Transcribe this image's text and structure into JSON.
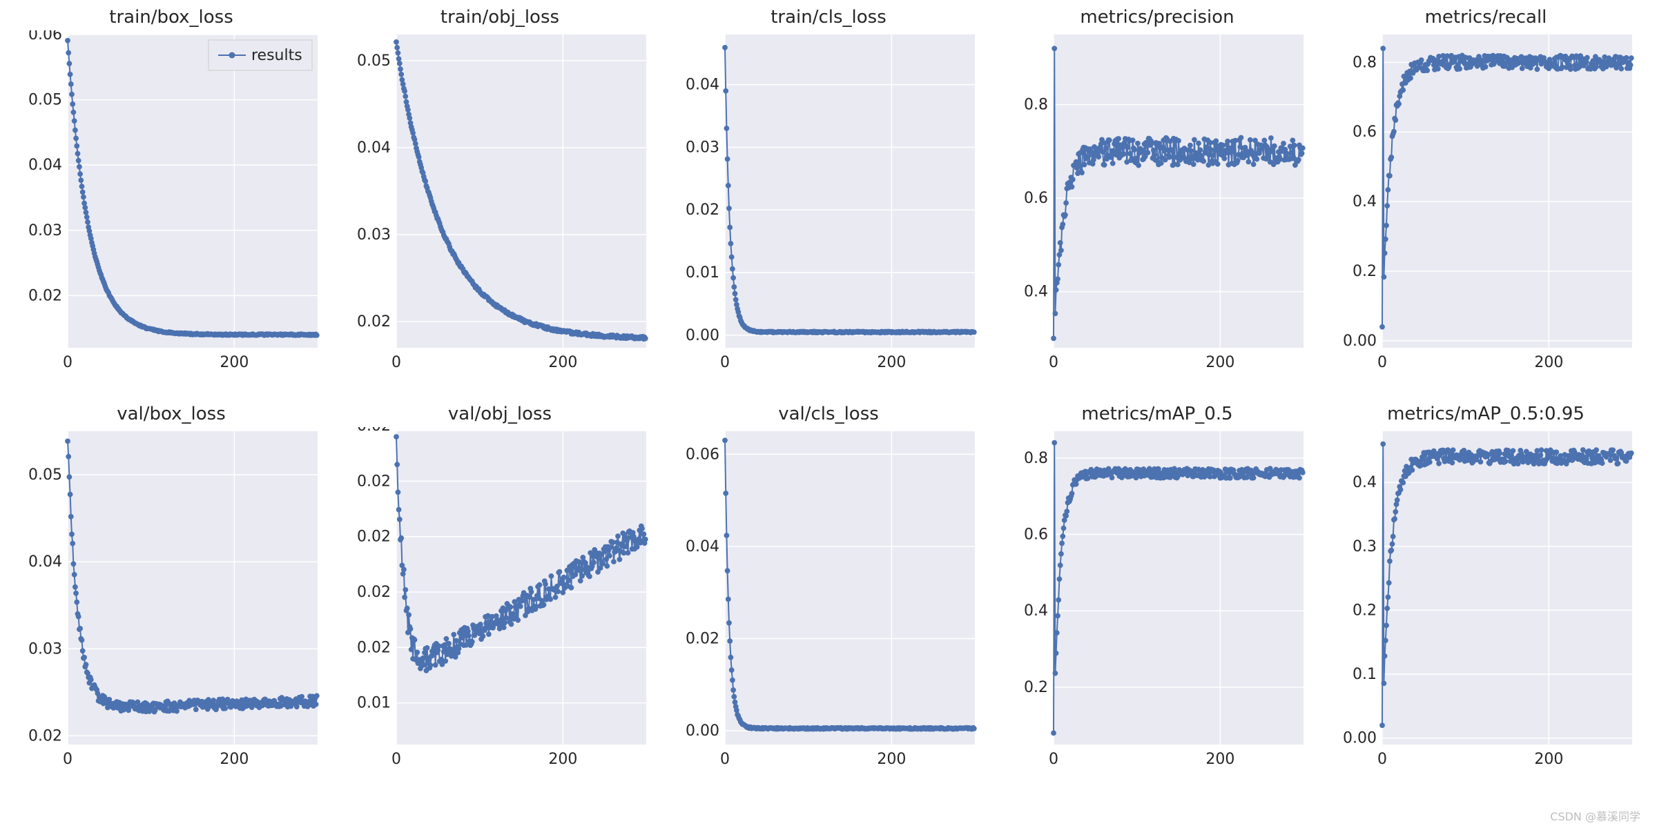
{
  "global": {
    "background_color": "#ffffff",
    "plot_bg": "#eaeaf2",
    "grid_color": "#ffffff",
    "line_color": "#4c72b0",
    "marker_color": "#4c72b0",
    "marker_fill": "#4c72b0",
    "marker_edge": "#ffffff",
    "marker_radius": 3.5,
    "line_width": 2,
    "tick_color": "#262626",
    "tick_fontsize": 22,
    "title_fontsize": 26,
    "n_points": 300,
    "x_min": 0,
    "x_max": 300,
    "x_ticks": [
      0,
      200
    ],
    "legend_label": "results",
    "watermark": "CSDN @慕溪同学"
  },
  "panels": [
    {
      "id": "train_box_loss",
      "title": "train/box_loss",
      "y_min": 0.012,
      "y_max": 0.06,
      "y_ticks": [
        0.02,
        0.03,
        0.04,
        0.05,
        0.06
      ],
      "curve": {
        "type": "exp_decay",
        "y0": 0.059,
        "y_inf": 0.014,
        "tau": 25,
        "noise": 0.0002
      },
      "show_legend": true
    },
    {
      "id": "train_obj_loss",
      "title": "train/obj_loss",
      "y_min": 0.017,
      "y_max": 0.053,
      "y_ticks": [
        0.02,
        0.03,
        0.04,
        0.05
      ],
      "curve": {
        "type": "exp_decay",
        "y0": 0.052,
        "y_inf": 0.018,
        "tau": 55,
        "noise": 0.0003
      }
    },
    {
      "id": "train_cls_loss",
      "title": "train/cls_loss",
      "y_min": -0.002,
      "y_max": 0.048,
      "y_ticks": [
        0.0,
        0.01,
        0.02,
        0.03,
        0.04
      ],
      "curve": {
        "type": "exp_decay",
        "y0": 0.046,
        "y_inf": 0.0005,
        "tau": 6,
        "noise": 0.0002
      }
    },
    {
      "id": "metrics_precision",
      "title": "metrics/precision",
      "y_min": 0.28,
      "y_max": 0.95,
      "y_ticks": [
        0.4,
        0.6,
        0.8
      ],
      "curve": {
        "type": "rise_noisy",
        "y0": 0.3,
        "y_inf": 0.7,
        "tau": 12,
        "noise": 0.06,
        "first_spike": 0.92
      }
    },
    {
      "id": "metrics_recall",
      "title": "metrics/recall",
      "y_min": -0.02,
      "y_max": 0.88,
      "y_ticks": [
        0.0,
        0.2,
        0.4,
        0.6,
        0.8
      ],
      "curve": {
        "type": "rise_noisy",
        "y0": 0.04,
        "y_inf": 0.8,
        "tau": 10,
        "noise": 0.04,
        "first_spike": 0.84
      }
    },
    {
      "id": "val_box_loss",
      "title": "val/box_loss",
      "y_min": 0.019,
      "y_max": 0.055,
      "y_ticks": [
        0.02,
        0.03,
        0.04,
        0.05
      ],
      "curve": {
        "type": "decay_plateau",
        "y0": 0.054,
        "y_inf": 0.023,
        "tau": 12,
        "noise": 0.0012,
        "late_rise": 0.001
      }
    },
    {
      "id": "val_obj_loss",
      "title": "val/obj_loss",
      "y_min": 0.0125,
      "y_max": 0.0238,
      "y_ticks": [
        0.014,
        0.016,
        0.018,
        0.02,
        0.022,
        0.024
      ],
      "curve": {
        "type": "u_shape",
        "y0": 0.0236,
        "y_min_v": 0.0148,
        "tau": 10,
        "rise_to": 0.0202,
        "noise": 0.0009
      }
    },
    {
      "id": "val_cls_loss",
      "title": "val/cls_loss",
      "y_min": -0.003,
      "y_max": 0.065,
      "y_ticks": [
        0.0,
        0.02,
        0.04,
        0.06
      ],
      "curve": {
        "type": "exp_decay",
        "y0": 0.063,
        "y_inf": 0.0005,
        "tau": 5,
        "noise": 0.0003
      }
    },
    {
      "id": "metrics_map50",
      "title": "metrics/mAP_0.5",
      "y_min": 0.05,
      "y_max": 0.87,
      "y_ticks": [
        0.2,
        0.4,
        0.6,
        0.8
      ],
      "curve": {
        "type": "rise_noisy",
        "y0": 0.08,
        "y_inf": 0.76,
        "tau": 8,
        "noise": 0.025,
        "first_spike": 0.84
      }
    },
    {
      "id": "metrics_map5095",
      "title": "metrics/mAP_0.5:0.95",
      "y_min": -0.01,
      "y_max": 0.48,
      "y_ticks": [
        0.0,
        0.1,
        0.2,
        0.3,
        0.4
      ],
      "curve": {
        "type": "rise_noisy",
        "y0": 0.02,
        "y_inf": 0.44,
        "tau": 10,
        "noise": 0.022,
        "first_spike": 0.46
      }
    }
  ]
}
